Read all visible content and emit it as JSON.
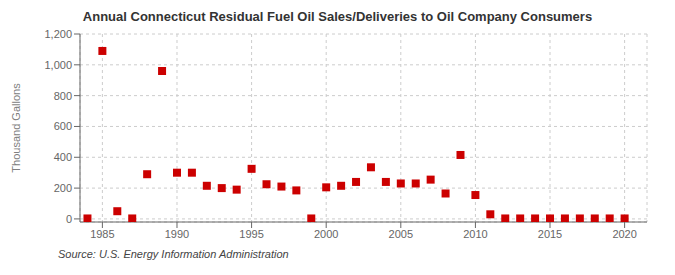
{
  "chart_data": {
    "type": "scatter",
    "title": "Annual Connecticut Residual Fuel Oil Sales/Deliveries to Oil Company Consumers",
    "ylabel": "Thousand Gallons",
    "source": "Source: U.S. Energy Information Administration",
    "color": "#cc0000",
    "marker": "square",
    "grid": true,
    "xlim": [
      1983.5,
      2021.5
    ],
    "ylim": [
      -20,
      1200
    ],
    "xticks": [
      1985,
      1990,
      1995,
      2000,
      2005,
      2010,
      2015,
      2020
    ],
    "yticks": [
      0,
      200,
      400,
      600,
      800,
      {
        "value": 1000,
        "label": "1,000"
      },
      {
        "value": 1200,
        "label": "1,200"
      }
    ],
    "x": [
      1984,
      1985,
      1986,
      1987,
      1988,
      1989,
      1990,
      1991,
      1992,
      1993,
      1994,
      1995,
      1996,
      1997,
      1998,
      1999,
      2000,
      2001,
      2002,
      2003,
      2004,
      2005,
      2006,
      2007,
      2008,
      2009,
      2010,
      2011,
      2012,
      2013,
      2014,
      2015,
      2016,
      2017,
      2018,
      2019,
      2020
    ],
    "values": [
      3,
      1090,
      50,
      3,
      290,
      960,
      300,
      300,
      215,
      200,
      190,
      325,
      225,
      210,
      185,
      3,
      205,
      215,
      240,
      335,
      240,
      230,
      230,
      255,
      165,
      415,
      155,
      30,
      3,
      3,
      3,
      3,
      3,
      3,
      3,
      3,
      3
    ]
  }
}
